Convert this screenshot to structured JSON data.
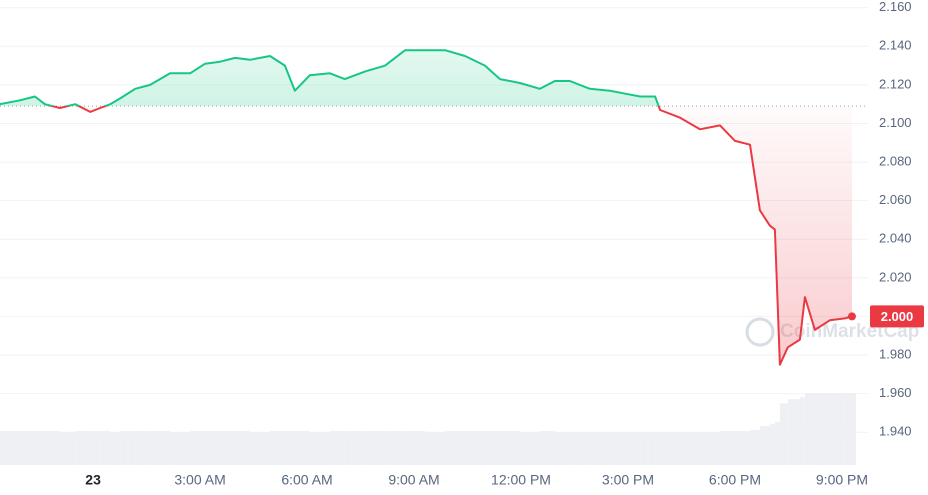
{
  "chart_data": {
    "type": "line",
    "x": [
      -2.61,
      -2.05,
      -1.63,
      -1.35,
      -0.93,
      -0.5,
      -0.08,
      0.2,
      0.48,
      0.76,
      1.18,
      1.6,
      2.16,
      2.72,
      3.14,
      3.56,
      3.98,
      4.4,
      4.96,
      5.38,
      5.66,
      6.08,
      6.64,
      7.06,
      7.63,
      8.19,
      8.75,
      9.31,
      9.87,
      10.43,
      10.99,
      11.41,
      11.97,
      12.53,
      12.95,
      13.37,
      13.93,
      14.49,
      15.34,
      15.76,
      15.9,
      16.46,
      17.02,
      17.58,
      18.0,
      18.42,
      18.7,
      18.98,
      19.12,
      19.26,
      19.48,
      19.82,
      19.96,
      20.24,
      20.66,
      21.08,
      21.28
    ],
    "series": [
      {
        "name": "Price",
        "values": [
          2.11,
          2.112,
          2.114,
          2.11,
          2.108,
          2.11,
          2.106,
          2.108,
          2.11,
          2.113,
          2.118,
          2.12,
          2.126,
          2.126,
          2.131,
          2.132,
          2.134,
          2.133,
          2.135,
          2.13,
          2.117,
          2.125,
          2.126,
          2.123,
          2.127,
          2.13,
          2.138,
          2.138,
          2.138,
          2.135,
          2.13,
          2.123,
          2.121,
          2.118,
          2.122,
          2.122,
          2.118,
          2.117,
          2.114,
          2.114,
          2.107,
          2.103,
          2.097,
          2.099,
          2.091,
          2.089,
          2.055,
          2.047,
          2.045,
          1.975,
          1.984,
          1.988,
          2.01,
          1.993,
          1.998,
          1.999,
          2.0
        ]
      }
    ],
    "volume": [
      33,
      33,
      33,
      33,
      32,
      33,
      33,
      33,
      32,
      33,
      33,
      33,
      32,
      33,
      33,
      33,
      33,
      32,
      33,
      33,
      33,
      32,
      33,
      33,
      33,
      33,
      33,
      32,
      33,
      33,
      33,
      33,
      32,
      33,
      32,
      32,
      32,
      32,
      32,
      32,
      32,
      32,
      32,
      33,
      33,
      34,
      38,
      40,
      42,
      60,
      64,
      66,
      70,
      70,
      70,
      70,
      70
    ],
    "reference_value": 2.109,
    "up_color": "#16c784",
    "down_color": "#ea3943",
    "last_price_label": "2.000",
    "watermark": "CoinMarketCap",
    "xlim": [
      -2.61,
      21.73
    ],
    "xticks": [
      {
        "value": 0,
        "label": "23"
      },
      {
        "value": 3,
        "label": "3:00 AM"
      },
      {
        "value": 6,
        "label": "6:00 AM"
      },
      {
        "value": 9,
        "label": "9:00 AM"
      },
      {
        "value": 12,
        "label": "12:00 PM"
      },
      {
        "value": 15,
        "label": "3:00 PM"
      },
      {
        "value": 18,
        "label": "6:00 PM"
      },
      {
        "value": 21,
        "label": "9:00 PM"
      }
    ],
    "ylim": [
      1.923,
      2.164
    ],
    "yticks": [
      {
        "value": 1.94,
        "label": "1.940"
      },
      {
        "value": 1.96,
        "label": "1.960"
      },
      {
        "value": 1.98,
        "label": "1.980"
      },
      {
        "value": 2.0,
        "label": "2.000"
      },
      {
        "value": 2.02,
        "label": "2.020"
      },
      {
        "value": 2.04,
        "label": "2.040"
      },
      {
        "value": 2.06,
        "label": "2.060"
      },
      {
        "value": 2.08,
        "label": "2.080"
      },
      {
        "value": 2.1,
        "label": "2.100"
      },
      {
        "value": 2.12,
        "label": "2.120"
      },
      {
        "value": 2.14,
        "label": "2.140"
      },
      {
        "value": 2.16,
        "label": "2.160"
      }
    ],
    "grid": true
  }
}
